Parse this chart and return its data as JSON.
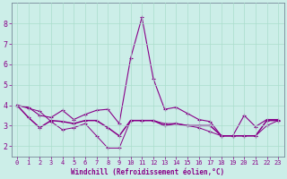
{
  "xlabel": "Windchill (Refroidissement éolien,°C)",
  "background_color": "#cceee8",
  "grid_color": "#aaddcc",
  "line_color": "#880088",
  "xlim": [
    -0.5,
    23.5
  ],
  "ylim": [
    1.5,
    9.0
  ],
  "yticks": [
    2,
    3,
    4,
    5,
    6,
    7,
    8
  ],
  "xticks": [
    0,
    1,
    2,
    3,
    4,
    5,
    6,
    7,
    8,
    9,
    10,
    11,
    12,
    13,
    14,
    15,
    16,
    17,
    18,
    19,
    20,
    21,
    22,
    23
  ],
  "line1_x": [
    0,
    1,
    2,
    3,
    4,
    5,
    6,
    7,
    8,
    9,
    10,
    11,
    12,
    13,
    14,
    15,
    16,
    17,
    18,
    19,
    20,
    21,
    22,
    23
  ],
  "line1_y": [
    4.0,
    3.9,
    3.5,
    3.4,
    3.75,
    3.3,
    3.55,
    3.75,
    3.8,
    3.1,
    6.3,
    8.3,
    5.3,
    3.8,
    3.9,
    3.6,
    3.3,
    3.2,
    2.5,
    2.5,
    3.5,
    2.95,
    3.3,
    3.3
  ],
  "line2_x": [
    0,
    1,
    2,
    3,
    4,
    5,
    6,
    7,
    8,
    9,
    10,
    11,
    12,
    13,
    14,
    15,
    16,
    17,
    18,
    19,
    20,
    21,
    22,
    23
  ],
  "line2_y": [
    4.0,
    3.4,
    2.9,
    3.25,
    3.2,
    3.1,
    3.25,
    3.25,
    2.9,
    2.5,
    3.25,
    3.25,
    3.25,
    3.0,
    3.1,
    3.0,
    3.0,
    3.0,
    2.5,
    2.5,
    2.5,
    2.5,
    3.25,
    3.25
  ],
  "line3_x": [
    0,
    1,
    2,
    3,
    4,
    5,
    6,
    7,
    8,
    9,
    10,
    11,
    12,
    13,
    14,
    15,
    16,
    17,
    18,
    19,
    20,
    21,
    22,
    23
  ],
  "line3_y": [
    4.0,
    3.85,
    3.7,
    3.2,
    2.8,
    2.9,
    3.1,
    2.5,
    1.9,
    1.9,
    3.25,
    3.25,
    3.25,
    3.1,
    3.1,
    3.0,
    2.9,
    2.7,
    2.5,
    2.5,
    2.5,
    2.5,
    3.0,
    3.25
  ]
}
